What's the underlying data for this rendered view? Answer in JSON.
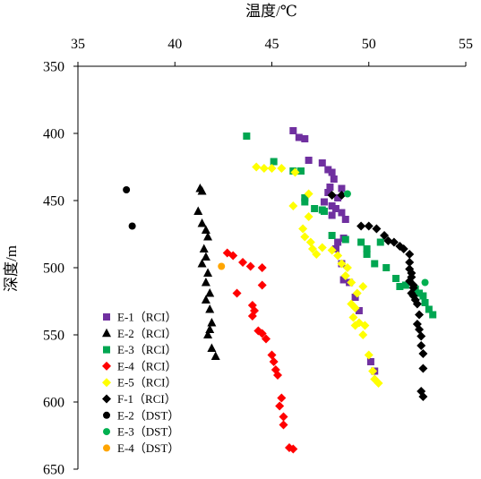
{
  "chart_data": {
    "type": "scatter",
    "xlabel": "温度/℃",
    "ylabel": "深度/m",
    "xlim": [
      35,
      55
    ],
    "ylim": [
      350,
      650
    ],
    "x_ticks": [
      35,
      40,
      45,
      50,
      55
    ],
    "y_ticks": [
      350,
      400,
      450,
      500,
      550,
      600,
      650
    ],
    "x_axis_position": "top",
    "y_axis_inverted": true,
    "grid": false,
    "legend_position": "bottom-left",
    "series": [
      {
        "name": "E-1（RCI）",
        "marker": "square",
        "color": "#7030A0",
        "points": [
          [
            46.1,
            398
          ],
          [
            46.4,
            403
          ],
          [
            46.7,
            404
          ],
          [
            46.9,
            420
          ],
          [
            47.6,
            422
          ],
          [
            47.9,
            427
          ],
          [
            48.1,
            429
          ],
          [
            48.2,
            434
          ],
          [
            48.0,
            440
          ],
          [
            48.6,
            441
          ],
          [
            47.9,
            444
          ],
          [
            48.4,
            448
          ],
          [
            47.7,
            451
          ],
          [
            48.1,
            454
          ],
          [
            48.3,
            456
          ],
          [
            48.6,
            459
          ],
          [
            48.1,
            461
          ],
          [
            48.8,
            464
          ],
          [
            48.7,
            478
          ],
          [
            48.4,
            481
          ],
          [
            48.3,
            486
          ],
          [
            48.6,
            497
          ],
          [
            48.7,
            509
          ],
          [
            49.0,
            511
          ],
          [
            49.3,
            522
          ],
          [
            49.5,
            532
          ],
          [
            50.1,
            570
          ],
          [
            50.3,
            577
          ]
        ]
      },
      {
        "name": "E-2（RCI）",
        "marker": "triangle",
        "color": "#000000",
        "points": [
          [
            41.3,
            441
          ],
          [
            41.4,
            443
          ],
          [
            41.2,
            458
          ],
          [
            41.4,
            467
          ],
          [
            41.6,
            472
          ],
          [
            41.7,
            477
          ],
          [
            41.5,
            486
          ],
          [
            41.6,
            492
          ],
          [
            41.4,
            497
          ],
          [
            41.7,
            504
          ],
          [
            41.6,
            511
          ],
          [
            41.8,
            519
          ],
          [
            41.6,
            524
          ],
          [
            41.8,
            531
          ],
          [
            41.9,
            541
          ],
          [
            41.8,
            546
          ],
          [
            41.7,
            550
          ],
          [
            41.9,
            560
          ],
          [
            42.1,
            566
          ]
        ]
      },
      {
        "name": "E-3（RCI）",
        "marker": "square",
        "color": "#00A651",
        "points": [
          [
            43.7,
            402
          ],
          [
            45.1,
            421
          ],
          [
            46.1,
            428
          ],
          [
            46.5,
            428
          ],
          [
            46.7,
            448
          ],
          [
            46.7,
            451
          ],
          [
            47.2,
            456
          ],
          [
            47.6,
            457
          ],
          [
            47.7,
            458
          ],
          [
            48.1,
            476
          ],
          [
            48.8,
            479
          ],
          [
            49.6,
            481
          ],
          [
            49.9,
            486
          ],
          [
            49.9,
            490
          ],
          [
            50.6,
            481
          ],
          [
            50.3,
            497
          ],
          [
            50.9,
            500
          ],
          [
            51.4,
            508
          ],
          [
            51.9,
            513
          ],
          [
            51.6,
            514
          ],
          [
            52.4,
            516
          ],
          [
            52.6,
            519
          ],
          [
            52.8,
            521
          ],
          [
            52.9,
            526
          ],
          [
            53.1,
            531
          ],
          [
            53.3,
            535
          ]
        ]
      },
      {
        "name": "E-4（RCI）",
        "marker": "diamond",
        "color": "#FF0000",
        "points": [
          [
            42.7,
            489
          ],
          [
            43.0,
            491
          ],
          [
            43.5,
            496
          ],
          [
            43.9,
            499
          ],
          [
            44.5,
            500
          ],
          [
            44.5,
            513
          ],
          [
            43.2,
            519
          ],
          [
            44.0,
            528
          ],
          [
            44.1,
            532
          ],
          [
            44.0,
            536
          ],
          [
            44.3,
            547
          ],
          [
            44.5,
            549
          ],
          [
            44.7,
            553
          ],
          [
            45.0,
            565
          ],
          [
            45.1,
            570
          ],
          [
            45.2,
            576
          ],
          [
            45.3,
            580
          ],
          [
            45.5,
            597
          ],
          [
            45.4,
            603
          ],
          [
            45.6,
            611
          ],
          [
            45.6,
            617
          ],
          [
            45.9,
            634
          ],
          [
            46.1,
            635
          ]
        ]
      },
      {
        "name": "E-5（RCI）",
        "marker": "diamond",
        "color": "#FFFF00",
        "points": [
          [
            44.2,
            425
          ],
          [
            44.6,
            426
          ],
          [
            45.0,
            426
          ],
          [
            45.5,
            426
          ],
          [
            46.2,
            429
          ],
          [
            46.9,
            445
          ],
          [
            46.1,
            454
          ],
          [
            46.9,
            462
          ],
          [
            46.6,
            471
          ],
          [
            46.7,
            477
          ],
          [
            47.0,
            481
          ],
          [
            47.1,
            486
          ],
          [
            47.3,
            490
          ],
          [
            47.6,
            485
          ],
          [
            48.1,
            487
          ],
          [
            48.4,
            491
          ],
          [
            48.6,
            497
          ],
          [
            48.9,
            500
          ],
          [
            48.8,
            506
          ],
          [
            49.1,
            511
          ],
          [
            49.7,
            514
          ],
          [
            49.4,
            519
          ],
          [
            49.1,
            527
          ],
          [
            49.3,
            530
          ],
          [
            49.2,
            537
          ],
          [
            49.3,
            543
          ],
          [
            49.5,
            541
          ],
          [
            49.8,
            543
          ],
          [
            49.7,
            550
          ],
          [
            50.0,
            565
          ],
          [
            50.2,
            577
          ],
          [
            50.3,
            583
          ],
          [
            50.5,
            586
          ]
        ]
      },
      {
        "name": "F-1（RCI）",
        "marker": "diamond",
        "color": "#000000",
        "points": [
          [
            48.1,
            446
          ],
          [
            48.6,
            446
          ],
          [
            49.6,
            469
          ],
          [
            50.0,
            469
          ],
          [
            50.4,
            471
          ],
          [
            50.8,
            476
          ],
          [
            51.0,
            480
          ],
          [
            51.3,
            481
          ],
          [
            51.6,
            484
          ],
          [
            51.8,
            486
          ],
          [
            52.1,
            490
          ],
          [
            52.1,
            496
          ],
          [
            52.1,
            501
          ],
          [
            52.2,
            504
          ],
          [
            52.2,
            507
          ],
          [
            52.1,
            510
          ],
          [
            52.3,
            513
          ],
          [
            52.3,
            515
          ],
          [
            52.2,
            519
          ],
          [
            52.3,
            521
          ],
          [
            52.4,
            524
          ],
          [
            52.5,
            527
          ],
          [
            52.6,
            535
          ],
          [
            52.5,
            542
          ],
          [
            52.6,
            546
          ],
          [
            52.7,
            551
          ],
          [
            52.7,
            558
          ],
          [
            52.8,
            564
          ],
          [
            52.8,
            575
          ],
          [
            52.7,
            592
          ],
          [
            52.8,
            596
          ]
        ]
      },
      {
        "name": "E-2（DST）",
        "marker": "circle",
        "color": "#000000",
        "points": [
          [
            37.5,
            442
          ],
          [
            37.8,
            469
          ]
        ]
      },
      {
        "name": "E-3（DST）",
        "marker": "circle",
        "color": "#00B050",
        "points": [
          [
            48.9,
            445
          ],
          [
            52.9,
            511
          ]
        ]
      },
      {
        "name": "E-4（DST）",
        "marker": "circle",
        "color": "#FFA500",
        "points": [
          [
            42.4,
            499
          ]
        ]
      }
    ]
  }
}
